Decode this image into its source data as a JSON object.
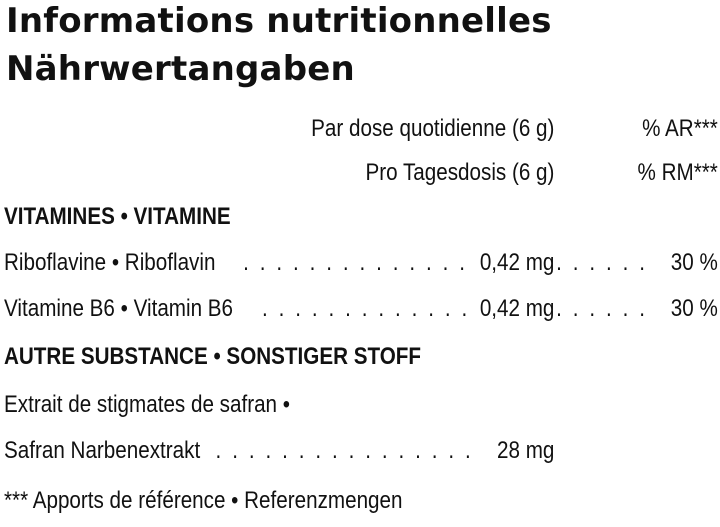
{
  "title_fr": "Informations nutritionnelles",
  "title_de": "Nährwertangaben",
  "header": {
    "dose_fr": "Par dose quotidienne (6 g)",
    "ar_fr": "% AR***",
    "dose_de": "Pro Tagesdosis (6 g)",
    "rm_de": "% RM***"
  },
  "section_vitamins": "VITAMINES • VITAMINE",
  "vitamins": [
    {
      "name": "Riboflavine • Riboflavin",
      "amount": "0,42 mg",
      "percent": "30 %"
    },
    {
      "name": "Vitamine B6 • Vitamin B6",
      "amount": "0,42 mg",
      "percent": "30 %"
    }
  ],
  "section_other": "AUTRE SUBSTANCE • SONSTIGER STOFF",
  "other": {
    "name_line1": "Extrait de stigmates de safran •",
    "name_line2": "Safran Narbenextrakt",
    "amount": "28 mg"
  },
  "footnote": "*** Apports de référence • Referenzmengen"
}
